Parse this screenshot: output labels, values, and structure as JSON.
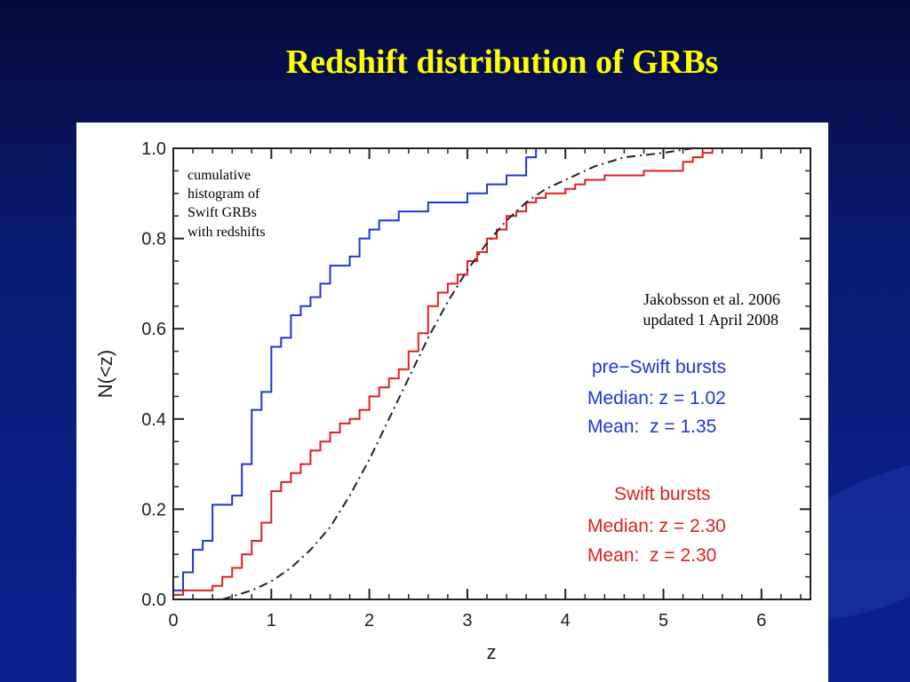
{
  "slide": {
    "title": "Redshift distribution of GRBs"
  },
  "chart_data": {
    "type": "line",
    "xlabel": "z",
    "ylabel": "N(<z)",
    "xlim": [
      0,
      6.5
    ],
    "ylim": [
      0,
      1.0
    ],
    "x_ticks": [
      "0",
      "1",
      "2",
      "3",
      "4",
      "5",
      "6"
    ],
    "y_ticks": [
      "0.0",
      "0.2",
      "0.4",
      "0.6",
      "0.8",
      "1.0"
    ],
    "annotations": {
      "cumulative_note": [
        "cumulative",
        "histogram of",
        "Swift GRBs",
        "with redshifts"
      ],
      "citation": [
        "Jakobsson et al. 2006",
        "updated 1 April 2008"
      ]
    },
    "stats": [
      {
        "header": "pre−Swift bursts",
        "median": "Median: z = 1.02",
        "mean": "Mean:  z = 1.35",
        "color": "#1f35d9"
      },
      {
        "header": "Swift bursts",
        "median": "Median: z = 2.30",
        "mean": "Mean:  z = 2.30",
        "color": "#e01f1f"
      }
    ],
    "series": [
      {
        "name": "pre-Swift bursts",
        "style": "step",
        "color": "#1f35d9",
        "x": [
          0.0,
          0.1,
          0.2,
          0.3,
          0.4,
          0.6,
          0.7,
          0.8,
          0.9,
          1.0,
          1.1,
          1.2,
          1.3,
          1.4,
          1.5,
          1.6,
          1.8,
          1.9,
          2.0,
          2.1,
          2.3,
          2.6,
          3.0,
          3.2,
          3.4,
          3.6,
          3.7,
          4.4
        ],
        "y": [
          0.02,
          0.06,
          0.11,
          0.13,
          0.21,
          0.23,
          0.3,
          0.42,
          0.46,
          0.56,
          0.58,
          0.63,
          0.65,
          0.67,
          0.7,
          0.74,
          0.76,
          0.8,
          0.82,
          0.84,
          0.86,
          0.88,
          0.9,
          0.92,
          0.94,
          0.98,
          1.0,
          1.0
        ]
      },
      {
        "name": "Swift bursts",
        "style": "step",
        "color": "#e01f1f",
        "x": [
          0.0,
          0.1,
          0.4,
          0.5,
          0.6,
          0.7,
          0.8,
          0.9,
          1.0,
          1.1,
          1.2,
          1.3,
          1.4,
          1.5,
          1.6,
          1.7,
          1.8,
          1.9,
          2.0,
          2.1,
          2.2,
          2.3,
          2.4,
          2.5,
          2.6,
          2.7,
          2.8,
          2.9,
          3.0,
          3.1,
          3.2,
          3.3,
          3.4,
          3.5,
          3.6,
          3.7,
          3.8,
          4.0,
          4.1,
          4.2,
          4.4,
          4.6,
          4.8,
          5.0,
          5.2,
          5.3,
          5.4,
          5.5,
          6.2
        ],
        "y": [
          0.01,
          0.02,
          0.03,
          0.05,
          0.07,
          0.1,
          0.13,
          0.17,
          0.24,
          0.26,
          0.28,
          0.3,
          0.33,
          0.35,
          0.37,
          0.39,
          0.4,
          0.42,
          0.45,
          0.47,
          0.49,
          0.51,
          0.55,
          0.59,
          0.65,
          0.68,
          0.7,
          0.72,
          0.75,
          0.77,
          0.8,
          0.82,
          0.85,
          0.86,
          0.88,
          0.89,
          0.9,
          0.91,
          0.92,
          0.93,
          0.94,
          0.94,
          0.95,
          0.95,
          0.97,
          0.98,
          0.99,
          1.0,
          1.0
        ]
      },
      {
        "name": "model",
        "style": "dashdot",
        "color": "#222222",
        "x": [
          0.5,
          0.8,
          1.0,
          1.2,
          1.4,
          1.6,
          1.8,
          2.0,
          2.2,
          2.4,
          2.6,
          2.8,
          3.0,
          3.2,
          3.4,
          3.6,
          3.8,
          4.0,
          4.3,
          4.6,
          5.0,
          5.3,
          5.6
        ],
        "y": [
          0.0,
          0.02,
          0.04,
          0.07,
          0.11,
          0.16,
          0.23,
          0.31,
          0.4,
          0.49,
          0.58,
          0.66,
          0.73,
          0.79,
          0.84,
          0.88,
          0.91,
          0.93,
          0.96,
          0.98,
          0.99,
          1.0,
          1.0
        ]
      }
    ]
  }
}
